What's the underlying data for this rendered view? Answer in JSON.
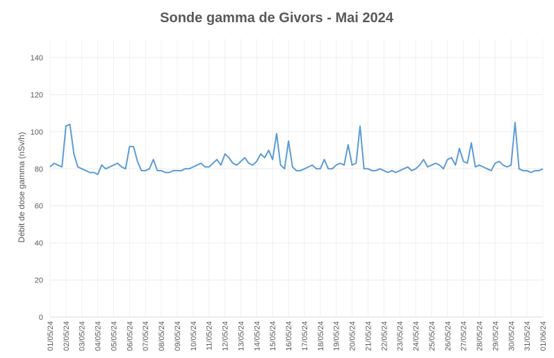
{
  "chart_data": {
    "type": "line",
    "title": "Sonde gamma de Givors - Mai 2024",
    "ylabel": "Débit de dose gamma (nSv/h)",
    "categories": [
      "01/05/24",
      null,
      null,
      null,
      "02/05/24",
      null,
      null,
      null,
      "03/05/24",
      null,
      null,
      null,
      "04/05/24",
      null,
      null,
      null,
      "05/05/24",
      null,
      null,
      null,
      "06/05/24",
      null,
      null,
      null,
      "07/05/24",
      null,
      null,
      null,
      "08/05/24",
      null,
      null,
      null,
      "09/05/24",
      null,
      null,
      null,
      "10/05/24",
      null,
      null,
      null,
      "11/05/24",
      null,
      null,
      null,
      "12/05/24",
      null,
      null,
      null,
      "13/05/24",
      null,
      null,
      null,
      "14/05/24",
      null,
      null,
      null,
      "15/05/24",
      null,
      null,
      null,
      "16/05/24",
      null,
      null,
      null,
      "17/05/24",
      null,
      null,
      null,
      "18/05/24",
      null,
      null,
      null,
      "19/05/24",
      null,
      null,
      null,
      "20/05/24",
      null,
      null,
      null,
      "21/05/24",
      null,
      null,
      null,
      "22/05/24",
      null,
      null,
      null,
      "23/05/24",
      null,
      null,
      null,
      "24/05/24",
      null,
      null,
      null,
      "25/05/24",
      null,
      null,
      null,
      "26/05/24",
      null,
      null,
      null,
      "27/05/24",
      null,
      null,
      null,
      "28/05/24",
      null,
      null,
      null,
      "29/05/24",
      null,
      null,
      null,
      "30/05/24",
      null,
      null,
      null,
      "31/05/24",
      null,
      null,
      null,
      "01/06/24"
    ],
    "series": [
      {
        "color": "#5b9bd5",
        "values": [
          81,
          83,
          82,
          81,
          103,
          104,
          88,
          81,
          80,
          79,
          78,
          78,
          77,
          82,
          80,
          81,
          82,
          83,
          81,
          80,
          92,
          92,
          84,
          79,
          79,
          80,
          85,
          79,
          79,
          78,
          78,
          79,
          79,
          79,
          80,
          80,
          81,
          82,
          83,
          81,
          81,
          83,
          85,
          82,
          88,
          86,
          83,
          82,
          84,
          86,
          83,
          82,
          84,
          88,
          86,
          90,
          85,
          99,
          82,
          80,
          95,
          81,
          79,
          79,
          80,
          81,
          82,
          80,
          80,
          85,
          80,
          80,
          82,
          83,
          82,
          93,
          82,
          83,
          103,
          80,
          80,
          79,
          79,
          80,
          79,
          78,
          79,
          78,
          79,
          80,
          81,
          79,
          80,
          82,
          85,
          81,
          82,
          83,
          82,
          80,
          85,
          86,
          82,
          91,
          84,
          83,
          94,
          81,
          82,
          81,
          80,
          79,
          83,
          84,
          82,
          81,
          82,
          105,
          80,
          79,
          79,
          78,
          79,
          79,
          80
        ]
      }
    ],
    "ylim": [
      0,
      150
    ],
    "yticks": [
      0,
      20,
      40,
      60,
      80,
      100,
      120,
      140
    ],
    "grid": true
  }
}
